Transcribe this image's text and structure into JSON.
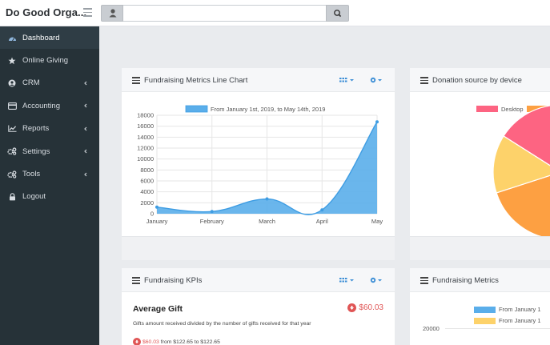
{
  "header": {
    "brand": "Do Good Orga...",
    "search": {
      "value": "",
      "placeholder": ""
    }
  },
  "sidebar": {
    "items": [
      {
        "label": "Dashboard",
        "icon": "dashboard-icon",
        "active": true,
        "has_submenu": false
      },
      {
        "label": "Online Giving",
        "icon": "star-icon",
        "active": false,
        "has_submenu": false
      },
      {
        "label": "CRM",
        "icon": "user-circle-icon",
        "active": false,
        "has_submenu": true
      },
      {
        "label": "Accounting",
        "icon": "credit-card-icon",
        "active": false,
        "has_submenu": true
      },
      {
        "label": "Reports",
        "icon": "line-chart-icon",
        "active": false,
        "has_submenu": true
      },
      {
        "label": "Settings",
        "icon": "cogs-icon",
        "active": false,
        "has_submenu": true
      },
      {
        "label": "Tools",
        "icon": "cogs-icon",
        "active": false,
        "has_submenu": true
      },
      {
        "label": "Logout",
        "icon": "lock-icon",
        "active": false,
        "has_submenu": false
      }
    ]
  },
  "panels": {
    "line_chart": {
      "title": "Fundraising Metrics Line Chart"
    },
    "donation_source": {
      "title": "Donation source by device",
      "legend": [
        "Desktop"
      ]
    },
    "kpis": {
      "title": "Fundraising KPIs",
      "kpi_title": "Average Gift",
      "kpi_value": "$60.03",
      "kpi_desc": "Gifts amount received divided by the number of gifts received for that year",
      "change_amount": "$60.03",
      "change_text": "from $122.65 to $122.65"
    },
    "metrics": {
      "title": "Fundraising Metrics",
      "legend": [
        "From January 1",
        "From January 1"
      ],
      "y_tick": "20000"
    }
  },
  "colors": {
    "sidebar_bg": "#263238",
    "chart_fill": "#5aaeea",
    "chart_line": "#3f9de3",
    "pie_red": "#fd6482",
    "pie_orange": "#fda042",
    "pie_yellow": "#fdd26a",
    "bar_blue": "#5aaeea",
    "bar_yellow": "#fdd26a",
    "negative": "#e05555"
  },
  "chart_data": [
    {
      "type": "area",
      "title": "",
      "legend": [
        "From January 1st, 2019, to May 14th, 2019"
      ],
      "categories": [
        "January",
        "February",
        "March",
        "April",
        "May"
      ],
      "x": [
        0,
        1,
        2,
        3,
        4
      ],
      "series": [
        {
          "name": "From January 1st, 2019, to May 14th, 2019",
          "values": [
            1200,
            400,
            2700,
            700,
            16800
          ]
        }
      ],
      "ylim": [
        0,
        18000
      ],
      "yticks": [
        0,
        2000,
        4000,
        6000,
        8000,
        10000,
        12000,
        14000,
        16000,
        18000
      ],
      "grid": true
    },
    {
      "type": "pie",
      "title": "",
      "legend": [
        "Desktop"
      ],
      "labels": [
        "Desktop",
        "",
        ""
      ],
      "values": [
        68,
        18,
        14
      ]
    }
  ]
}
